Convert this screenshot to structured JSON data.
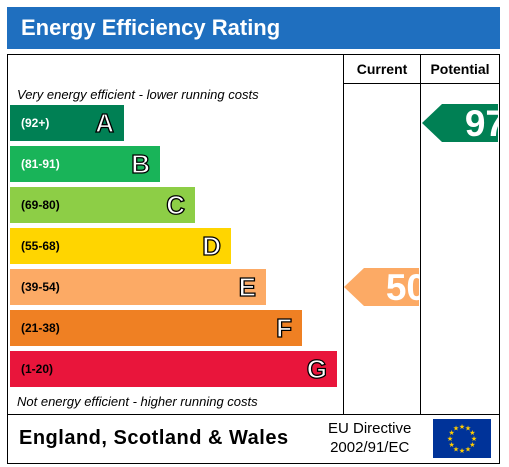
{
  "title": "Energy Efficiency Rating",
  "columns": {
    "current": "Current",
    "potential": "Potential"
  },
  "notes": {
    "top": "Very energy efficient - lower running costs",
    "bottom": "Not energy efficient - higher running costs"
  },
  "footer": {
    "country": "England, Scotland & Wales",
    "directive_line1": "EU Directive",
    "directive_line2": "2002/91/EC"
  },
  "colors": {
    "title_bar": "#1f6fbf",
    "A": "#008054",
    "B": "#19b459",
    "C": "#8dce46",
    "D": "#ffd500",
    "E": "#fcaa65",
    "F": "#ef8023",
    "G": "#e9153b"
  },
  "chart_data": {
    "type": "bar",
    "title": "Energy Efficiency Rating",
    "bands": [
      {
        "letter": "A",
        "range": "(92+)"
      },
      {
        "letter": "B",
        "range": "(81-91)"
      },
      {
        "letter": "C",
        "range": "(69-80)"
      },
      {
        "letter": "D",
        "range": "(55-68)"
      },
      {
        "letter": "E",
        "range": "(39-54)"
      },
      {
        "letter": "F",
        "range": "(21-38)"
      },
      {
        "letter": "G",
        "range": "(1-20)"
      }
    ],
    "current": {
      "value": "50",
      "band": "E",
      "color": "#fcaa65"
    },
    "potential": {
      "value": "97",
      "band": "A",
      "color": "#008054"
    }
  }
}
